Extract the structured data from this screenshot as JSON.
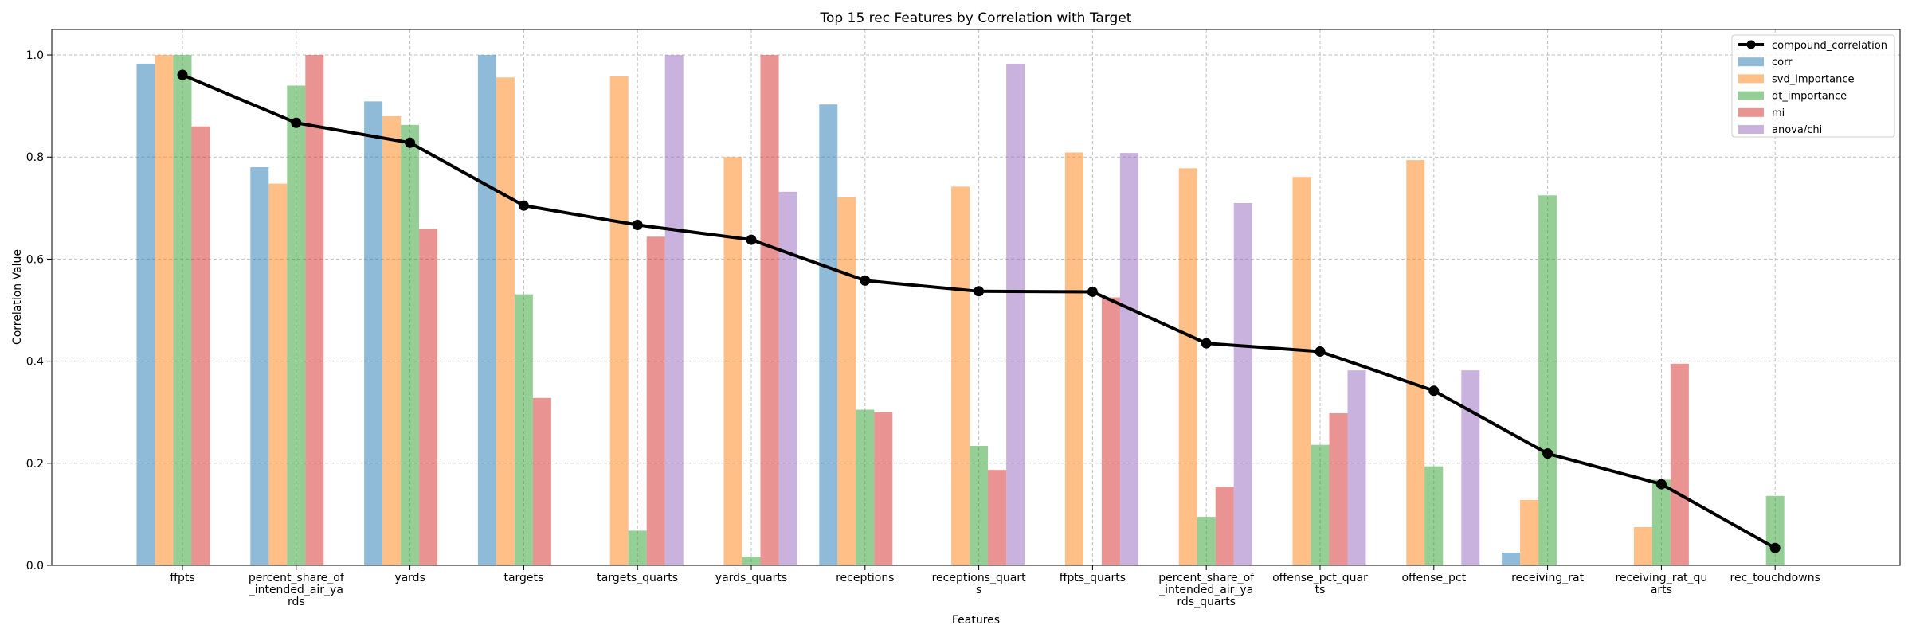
{
  "chart_data": {
    "type": "bar",
    "title": "Top 15 rec Features by Correlation with Target",
    "xlabel": "Features",
    "ylabel": "Correlation Value",
    "ylim": [
      0,
      1.05
    ],
    "yticks": [
      "0.0",
      "0.2",
      "0.4",
      "0.6",
      "0.8",
      "1.0"
    ],
    "grid": true,
    "legend_position": "top-right",
    "categories": [
      [
        "ffpts"
      ],
      [
        "percent_share_of",
        "_intended_air_ya",
        "rds"
      ],
      [
        "yards"
      ],
      [
        "targets"
      ],
      [
        "targets_quarts"
      ],
      [
        "yards_quarts"
      ],
      [
        "receptions"
      ],
      [
        "receptions_quart",
        "s"
      ],
      [
        "ffpts_quarts"
      ],
      [
        "percent_share_of",
        "_intended_air_ya",
        "rds_quarts"
      ],
      [
        "offense_pct_quar",
        "ts"
      ],
      [
        "offense_pct"
      ],
      [
        "receiving_rat"
      ],
      [
        "receiving_rat_qu",
        "arts"
      ],
      [
        "rec_touchdowns"
      ]
    ],
    "series": [
      {
        "name": "corr",
        "color": "#1f77b4",
        "values": [
          0.983,
          0.78,
          0.909,
          1.0,
          null,
          null,
          0.903,
          null,
          null,
          null,
          null,
          null,
          0.025,
          null,
          null
        ]
      },
      {
        "name": "svd_importance",
        "color": "#ff7f0e",
        "values": [
          1.0,
          0.748,
          0.88,
          0.956,
          0.958,
          0.8,
          0.721,
          0.742,
          0.809,
          0.778,
          0.761,
          0.794,
          0.128,
          0.075,
          null
        ]
      },
      {
        "name": "dt_importance",
        "color": "#2ca02c",
        "values": [
          1.0,
          0.94,
          0.863,
          0.531,
          0.068,
          0.017,
          0.305,
          0.234,
          null,
          0.095,
          0.236,
          0.194,
          0.725,
          0.168,
          0.136
        ]
      },
      {
        "name": "mi",
        "color": "#d62728",
        "values": [
          0.86,
          1.0,
          0.659,
          0.328,
          0.644,
          1.0,
          0.3,
          0.187,
          0.525,
          0.154,
          0.298,
          null,
          null,
          0.395,
          null
        ]
      },
      {
        "name": "anova/chi",
        "color": "#9467bd",
        "values": [
          null,
          null,
          null,
          null,
          1.0,
          0.732,
          null,
          0.983,
          0.808,
          0.71,
          0.382,
          0.382,
          null,
          null,
          null
        ]
      }
    ],
    "line_series": {
      "name": "compound_correlation",
      "color": "#000000",
      "values": [
        0.961,
        0.867,
        0.828,
        0.705,
        0.667,
        0.638,
        0.558,
        0.537,
        0.536,
        0.435,
        0.419,
        0.342,
        0.219,
        0.159,
        0.034
      ]
    }
  }
}
